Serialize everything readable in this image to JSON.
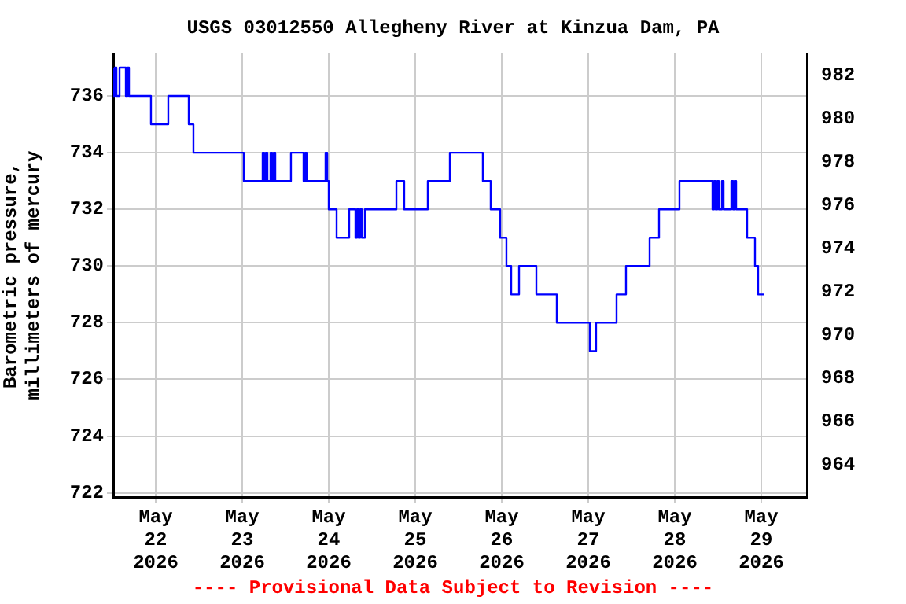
{
  "chart_data": {
    "type": "step",
    "title": "USGS 03012550 Allegheny River at Kinzua Dam, PA",
    "ylabel": "Barometric pressure, millimeters of mercury",
    "annotations": [
      "---- Provisional Data Subject to Revision ----"
    ],
    "x": [
      "2026-05-21T12:13",
      "2026-05-21T12:39",
      "2026-05-21T13:06",
      "2026-05-21T13:58",
      "2026-05-21T15:43",
      "2026-05-21T16:09",
      "2026-05-21T16:35",
      "2026-05-21T22:41",
      "2026-05-22T03:29",
      "2026-05-22T09:10",
      "2026-05-22T10:28",
      "2026-05-23T00:26",
      "2026-05-23T05:40",
      "2026-05-23T06:06",
      "2026-05-23T06:33",
      "2026-05-23T06:59",
      "2026-05-23T07:51",
      "2026-05-23T08:17",
      "2026-05-23T08:44",
      "2026-05-23T09:10",
      "2026-05-23T13:31",
      "2026-05-23T17:01",
      "2026-05-23T17:27",
      "2026-05-23T17:53",
      "2026-05-23T23:07",
      "2026-05-23T23:34",
      "2026-05-24T00:00",
      "2026-05-24T02:11",
      "2026-05-24T05:40",
      "2026-05-24T07:25",
      "2026-05-24T07:51",
      "2026-05-24T08:17",
      "2026-05-24T08:43",
      "2026-05-24T09:10",
      "2026-05-24T10:02",
      "2026-05-24T18:46",
      "2026-05-24T20:56",
      "2026-05-25T03:29",
      "2026-05-25T09:36",
      "2026-05-25T18:45",
      "2026-05-25T20:56",
      "2026-05-25T23:33",
      "2026-05-26T01:18",
      "2026-05-26T02:37",
      "2026-05-26T04:48",
      "2026-05-26T09:36",
      "2026-05-26T15:16",
      "2026-05-27T00:26",
      "2026-05-27T02:10",
      "2026-05-27T07:51",
      "2026-05-27T10:28",
      "2026-05-27T17:01",
      "2026-05-27T19:38",
      "2026-05-28T01:18",
      "2026-05-28T10:28",
      "2026-05-28T10:54",
      "2026-05-28T11:20",
      "2026-05-28T11:47",
      "2026-05-28T12:13",
      "2026-05-28T13:05",
      "2026-05-28T13:32",
      "2026-05-28T15:42",
      "2026-05-28T16:09",
      "2026-05-28T16:35",
      "2026-05-28T17:01",
      "2026-05-28T20:04",
      "2026-05-28T22:15",
      "2026-05-28T23:07",
      "2026-05-29T00:26",
      "2026-05-29T00:52"
    ],
    "series": [
      {
        "color": "#0000ff",
        "values": [
          737,
          736,
          737,
          736,
          737,
          736,
          737,
          736,
          735,
          736,
          735,
          734,
          733,
          734,
          733,
          734,
          733,
          734,
          733,
          734,
          733,
          734,
          733,
          734,
          733,
          734,
          733,
          732,
          731,
          732,
          731,
          732,
          731,
          732,
          731,
          732,
          733,
          732,
          733,
          734,
          733,
          732,
          731,
          730,
          729,
          730,
          729,
          728,
          727,
          728,
          729,
          730,
          731,
          732,
          733,
          732,
          733,
          732,
          733,
          732,
          733,
          732,
          733,
          732,
          733,
          732,
          731,
          730,
          729,
          729
        ]
      }
    ],
    "xlim": [
      "2026-05-21T12:13",
      "2026-05-29T12:39"
    ],
    "xticks": [
      {
        "value": "2026-05-22",
        "label": "May\n22\n2026"
      },
      {
        "value": "2026-05-23",
        "label": "May\n23\n2026"
      },
      {
        "value": "2026-05-24",
        "label": "May\n24\n2026"
      },
      {
        "value": "2026-05-25",
        "label": "May\n25\n2026"
      },
      {
        "value": "2026-05-26",
        "label": "May\n26\n2026"
      },
      {
        "value": "2026-05-27",
        "label": "May\n27\n2026"
      },
      {
        "value": "2026-05-28",
        "label": "May\n28\n2026"
      },
      {
        "value": "2026-05-29",
        "label": "May\n29\n2026"
      }
    ],
    "ylim": [
      721.85,
      737.5
    ],
    "yticks": [
      722,
      724,
      726,
      728,
      730,
      732,
      734,
      736
    ],
    "y2lim": [
      962.5,
      983
    ],
    "y2ticks": [
      964,
      966,
      968,
      970,
      972,
      974,
      976,
      978,
      980,
      982
    ],
    "grid": true,
    "legend": false,
    "marker": "none",
    "line_style": "solid"
  }
}
